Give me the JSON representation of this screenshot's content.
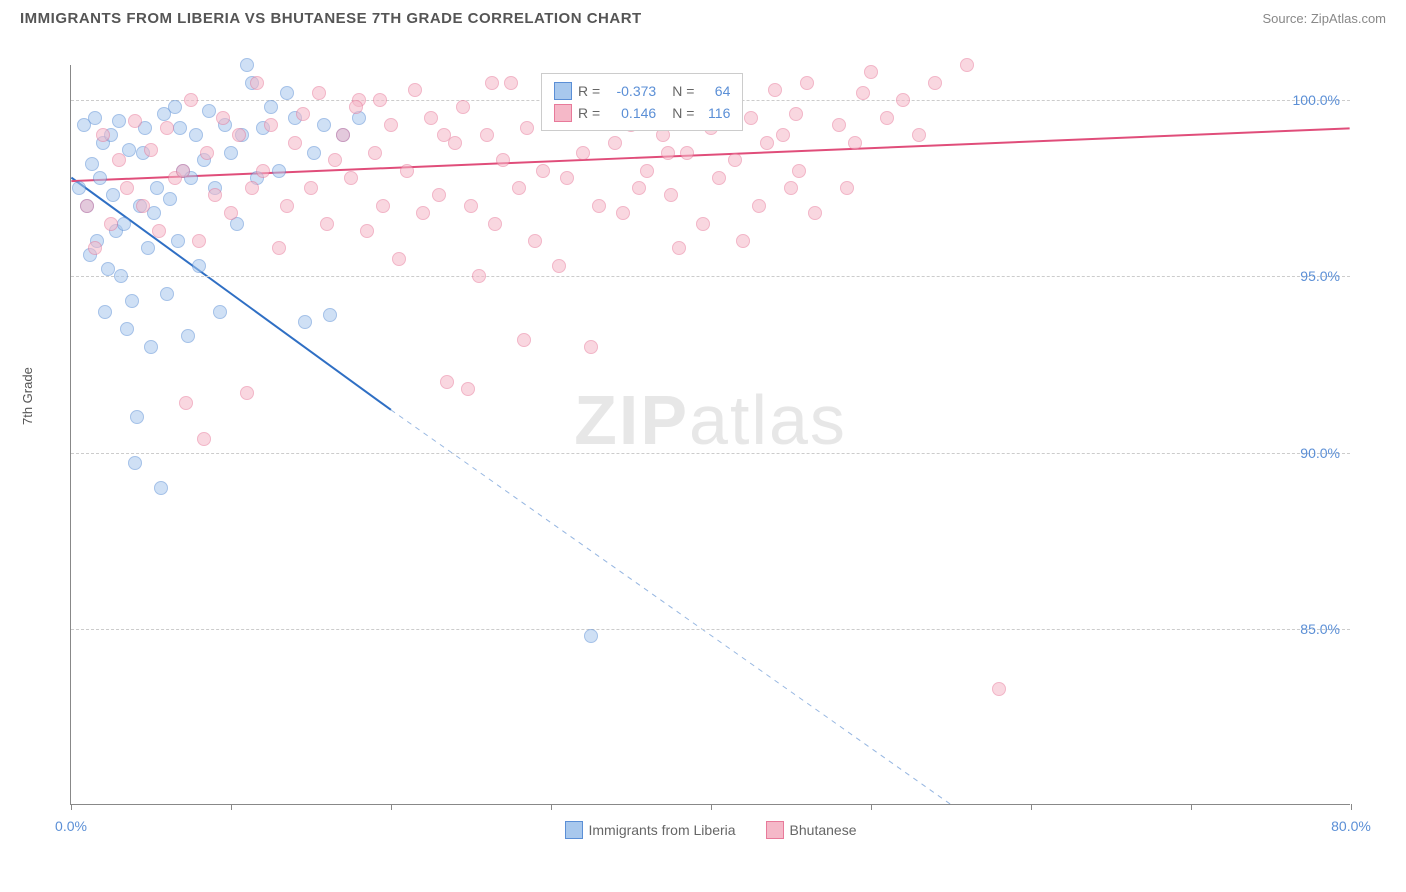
{
  "header": {
    "title": "IMMIGRANTS FROM LIBERIA VS BHUTANESE 7TH GRADE CORRELATION CHART",
    "source": "Source: ZipAtlas.com"
  },
  "chart": {
    "type": "scatter",
    "ylabel": "7th Grade",
    "background_color": "#ffffff",
    "grid_color": "#cccccc",
    "axis_color": "#888888",
    "xlim": [
      0,
      80
    ],
    "ylim": [
      80,
      101
    ],
    "xtick_positions": [
      0,
      10,
      20,
      30,
      40,
      50,
      60,
      70,
      80
    ],
    "xtick_labels": [
      "0.0%",
      "",
      "",
      "",
      "",
      "",
      "",
      "",
      "80.0%"
    ],
    "ytick_positions": [
      85,
      90,
      95,
      100
    ],
    "ytick_labels": [
      "85.0%",
      "90.0%",
      "95.0%",
      "100.0%"
    ],
    "watermark": "ZIPatlas",
    "series": [
      {
        "name": "Immigrants from Liberia",
        "color_fill": "#a8c8ed",
        "color_stroke": "#5b8fd6",
        "marker": "circle",
        "marker_size": 14,
        "R": "-0.373",
        "N": "64",
        "trend": {
          "x1": 0,
          "y1": 97.8,
          "x2": 20,
          "y2": 91.2,
          "x2_dash": 55,
          "y2_dash": 80,
          "stroke": "#2f6fc4",
          "width": 2
        },
        "points": [
          [
            0.5,
            97.5
          ],
          [
            0.8,
            99.3
          ],
          [
            1.0,
            97.0
          ],
          [
            1.2,
            95.6
          ],
          [
            1.3,
            98.2
          ],
          [
            1.5,
            99.5
          ],
          [
            1.6,
            96.0
          ],
          [
            1.8,
            97.8
          ],
          [
            2.0,
            98.8
          ],
          [
            2.1,
            94.0
          ],
          [
            2.3,
            95.2
          ],
          [
            2.5,
            99.0
          ],
          [
            2.6,
            97.3
          ],
          [
            2.8,
            96.3
          ],
          [
            3.0,
            99.4
          ],
          [
            3.1,
            95.0
          ],
          [
            3.3,
            96.5
          ],
          [
            3.5,
            93.5
          ],
          [
            3.6,
            98.6
          ],
          [
            3.8,
            94.3
          ],
          [
            4.0,
            89.7
          ],
          [
            4.1,
            91.0
          ],
          [
            4.3,
            97.0
          ],
          [
            4.5,
            98.5
          ],
          [
            4.6,
            99.2
          ],
          [
            4.8,
            95.8
          ],
          [
            5.0,
            93.0
          ],
          [
            5.2,
            96.8
          ],
          [
            5.4,
            97.5
          ],
          [
            5.6,
            89.0
          ],
          [
            5.8,
            99.6
          ],
          [
            6.0,
            94.5
          ],
          [
            6.2,
            97.2
          ],
          [
            6.5,
            99.8
          ],
          [
            6.7,
            96.0
          ],
          [
            7.0,
            98.0
          ],
          [
            7.3,
            93.3
          ],
          [
            7.5,
            97.8
          ],
          [
            7.8,
            99.0
          ],
          [
            8.0,
            95.3
          ],
          [
            8.3,
            98.3
          ],
          [
            8.6,
            99.7
          ],
          [
            9.0,
            97.5
          ],
          [
            9.3,
            94.0
          ],
          [
            9.6,
            99.3
          ],
          [
            10.0,
            98.5
          ],
          [
            10.4,
            96.5
          ],
          [
            10.7,
            99.0
          ],
          [
            11.0,
            101.0
          ],
          [
            11.3,
            100.5
          ],
          [
            11.6,
            97.8
          ],
          [
            12.0,
            99.2
          ],
          [
            12.5,
            99.8
          ],
          [
            13.0,
            98.0
          ],
          [
            13.5,
            100.2
          ],
          [
            14.0,
            99.5
          ],
          [
            14.6,
            93.7
          ],
          [
            15.2,
            98.5
          ],
          [
            15.8,
            99.3
          ],
          [
            16.2,
            93.9
          ],
          [
            17.0,
            99.0
          ],
          [
            18.0,
            99.5
          ],
          [
            32.5,
            84.8
          ],
          [
            6.8,
            99.2
          ]
        ]
      },
      {
        "name": "Bhutanese",
        "color_fill": "#f5b8c8",
        "color_stroke": "#e87a9a",
        "marker": "circle",
        "marker_size": 14,
        "R": "0.146",
        "N": "116",
        "trend": {
          "x1": 0,
          "y1": 97.7,
          "x2": 80,
          "y2": 99.2,
          "stroke": "#e04d7a",
          "width": 2
        },
        "points": [
          [
            1.0,
            97.0
          ],
          [
            1.5,
            95.8
          ],
          [
            2.0,
            99.0
          ],
          [
            2.5,
            96.5
          ],
          [
            3.0,
            98.3
          ],
          [
            3.5,
            97.5
          ],
          [
            4.0,
            99.4
          ],
          [
            4.5,
            97.0
          ],
          [
            5.0,
            98.6
          ],
          [
            5.5,
            96.3
          ],
          [
            6.0,
            99.2
          ],
          [
            6.5,
            97.8
          ],
          [
            7.0,
            98.0
          ],
          [
            7.2,
            91.4
          ],
          [
            7.5,
            100.0
          ],
          [
            8.0,
            96.0
          ],
          [
            8.3,
            90.4
          ],
          [
            8.5,
            98.5
          ],
          [
            9.0,
            97.3
          ],
          [
            9.5,
            99.5
          ],
          [
            10.0,
            96.8
          ],
          [
            10.5,
            99.0
          ],
          [
            11.0,
            91.7
          ],
          [
            11.3,
            97.5
          ],
          [
            11.6,
            100.5
          ],
          [
            12.0,
            98.0
          ],
          [
            12.5,
            99.3
          ],
          [
            13.0,
            95.8
          ],
          [
            13.5,
            97.0
          ],
          [
            14.0,
            98.8
          ],
          [
            14.5,
            99.6
          ],
          [
            15.0,
            97.5
          ],
          [
            15.5,
            100.2
          ],
          [
            16.0,
            96.5
          ],
          [
            16.5,
            98.3
          ],
          [
            17.0,
            99.0
          ],
          [
            17.5,
            97.8
          ],
          [
            18.0,
            100.0
          ],
          [
            18.5,
            96.3
          ],
          [
            19.0,
            98.5
          ],
          [
            19.5,
            97.0
          ],
          [
            20.0,
            99.3
          ],
          [
            20.5,
            95.5
          ],
          [
            21.0,
            98.0
          ],
          [
            21.5,
            100.3
          ],
          [
            22.0,
            96.8
          ],
          [
            22.5,
            99.5
          ],
          [
            23.0,
            97.3
          ],
          [
            23.5,
            92.0
          ],
          [
            24.0,
            98.8
          ],
          [
            24.5,
            99.8
          ],
          [
            25.0,
            97.0
          ],
          [
            25.5,
            95.0
          ],
          [
            26.0,
            99.0
          ],
          [
            26.5,
            96.5
          ],
          [
            27.0,
            98.3
          ],
          [
            27.5,
            100.5
          ],
          [
            28.0,
            97.5
          ],
          [
            28.5,
            99.2
          ],
          [
            29.0,
            96.0
          ],
          [
            29.5,
            98.0
          ],
          [
            30.0,
            100.0
          ],
          [
            30.5,
            95.3
          ],
          [
            31.0,
            97.8
          ],
          [
            31.5,
            99.5
          ],
          [
            32.0,
            98.5
          ],
          [
            32.5,
            93.0
          ],
          [
            33.0,
            97.0
          ],
          [
            33.5,
            100.2
          ],
          [
            34.0,
            98.8
          ],
          [
            34.5,
            96.8
          ],
          [
            35.0,
            99.3
          ],
          [
            35.5,
            97.5
          ],
          [
            36.0,
            98.0
          ],
          [
            36.5,
            100.5
          ],
          [
            37.0,
            99.0
          ],
          [
            37.5,
            97.3
          ],
          [
            38.0,
            95.8
          ],
          [
            38.5,
            98.5
          ],
          [
            39.0,
            99.8
          ],
          [
            39.5,
            96.5
          ],
          [
            40.0,
            99.2
          ],
          [
            40.5,
            97.8
          ],
          [
            41.0,
            100.0
          ],
          [
            41.5,
            98.3
          ],
          [
            42.0,
            96.0
          ],
          [
            42.5,
            99.5
          ],
          [
            43.0,
            97.0
          ],
          [
            43.5,
            98.8
          ],
          [
            44.0,
            100.3
          ],
          [
            44.5,
            99.0
          ],
          [
            45.0,
            97.5
          ],
          [
            45.5,
            98.0
          ],
          [
            46.0,
            100.5
          ],
          [
            46.5,
            96.8
          ],
          [
            48.0,
            99.3
          ],
          [
            50.0,
            100.8
          ],
          [
            52.0,
            100.0
          ],
          [
            54.0,
            100.5
          ],
          [
            56.0,
            101.0
          ],
          [
            58.0,
            83.3
          ],
          [
            48.5,
            97.5
          ],
          [
            49.0,
            98.8
          ],
          [
            49.5,
            100.2
          ],
          [
            51.0,
            99.5
          ],
          [
            53.0,
            99.0
          ],
          [
            24.8,
            91.8
          ],
          [
            28.3,
            93.2
          ],
          [
            17.8,
            99.8
          ],
          [
            19.3,
            100.0
          ],
          [
            23.3,
            99.0
          ],
          [
            26.3,
            100.5
          ],
          [
            31.3,
            99.8
          ],
          [
            34.3,
            99.5
          ],
          [
            37.3,
            98.5
          ],
          [
            45.3,
            99.6
          ]
        ]
      }
    ],
    "legend_bottom": [
      {
        "label": "Immigrants from Liberia",
        "fill": "#a8c8ed",
        "stroke": "#5b8fd6"
      },
      {
        "label": "Bhutanese",
        "fill": "#f5b8c8",
        "stroke": "#e87a9a"
      }
    ]
  }
}
